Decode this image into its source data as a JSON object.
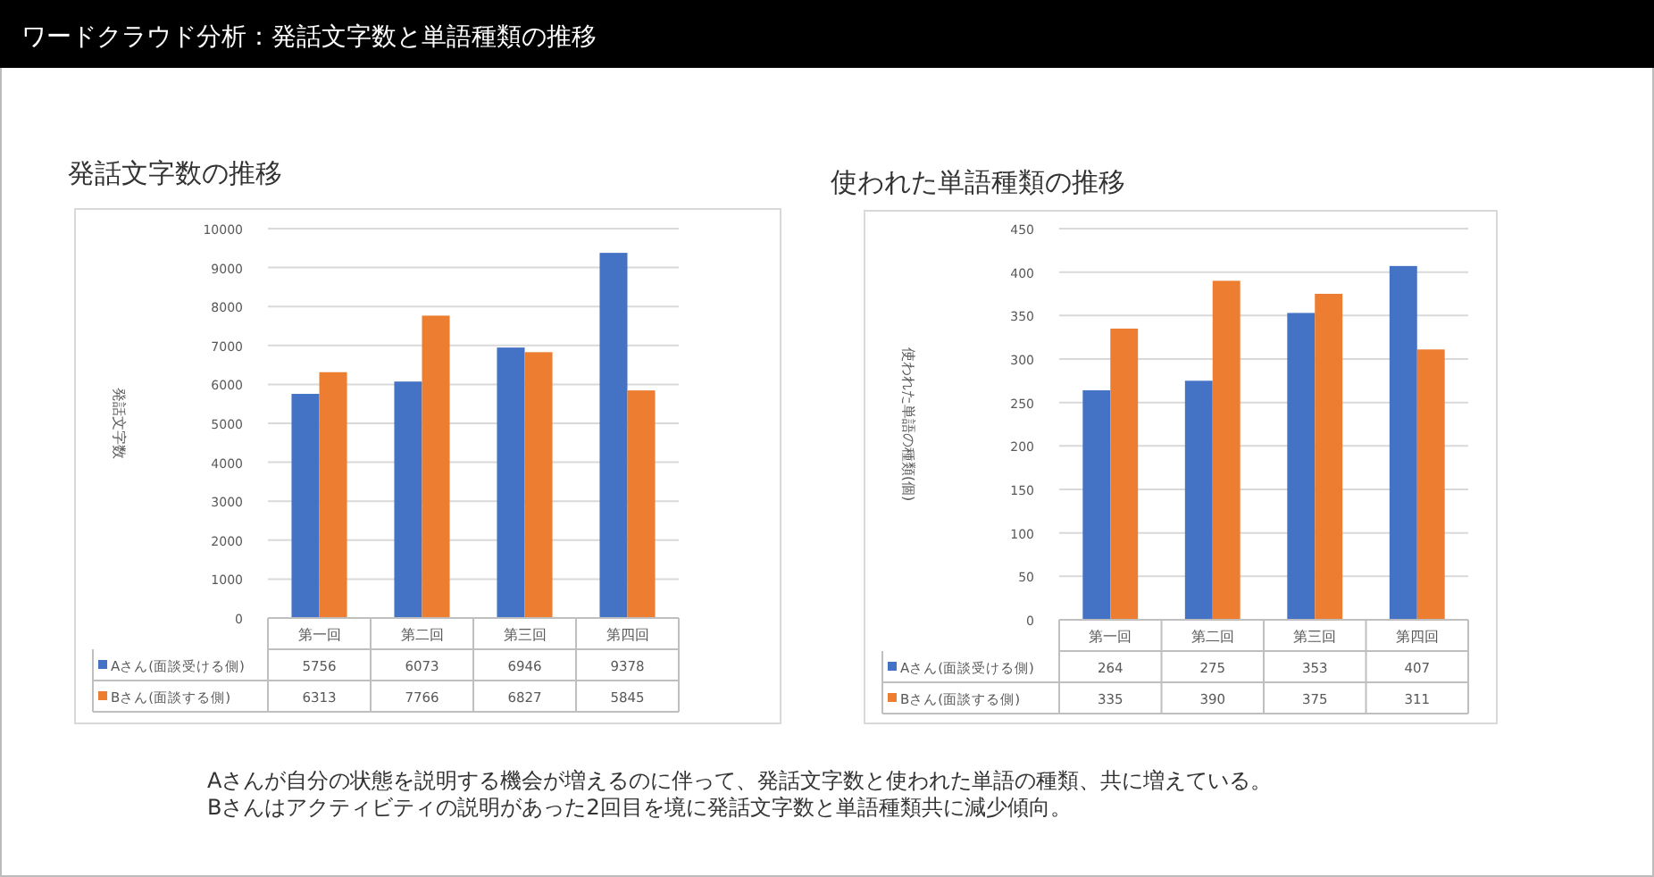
{
  "chart_data": [
    {
      "type": "bar",
      "title": "発話文字数の推移",
      "ylabel": "発話文字数",
      "annotations": [
        "ワードクラウド分析：発話文字数と単語種類の推移"
      ],
      "categories": [
        "第一回",
        "第二回",
        "第三回",
        "第四回"
      ],
      "series": [
        {
          "name": "Aさん(面談受ける側)",
          "color": "#4472c4",
          "values": [
            5756,
            6073,
            6946,
            9378
          ]
        },
        {
          "name": "Bさん(面談する側)",
          "color": "#ed7d31",
          "values": [
            6313,
            7766,
            6827,
            5845
          ]
        }
      ],
      "ylim": [
        0,
        10000
      ],
      "yticks": [
        0,
        1000,
        2000,
        3000,
        4000,
        5000,
        6000,
        7000,
        8000,
        9000,
        10000
      ],
      "grid": "y",
      "legend": "bottom",
      "data_labels": true
    },
    {
      "type": "bar",
      "title": "使われた単語種類の推移",
      "ylabel": "使われた単語の種類(個)",
      "annotations": [
        "Aさんが自分の状態を説明する機会が増えるのに伴って、発話文字数と使われた単語の種類、共に増えている。",
        "Bさんはアクティビティの説明があった2回目を境に発話文字数と単語種類共に減少傾向。"
      ],
      "categories": [
        "第一回",
        "第二回",
        "第三回",
        "第四回"
      ],
      "series": [
        {
          "name": "Aさん(面談受ける側)",
          "color": "#4472c4",
          "values": [
            264,
            275,
            353,
            407
          ]
        },
        {
          "name": "Bさん(面談する側)",
          "color": "#ed7d31",
          "values": [
            335,
            390,
            375,
            311
          ]
        }
      ],
      "ylim": [
        0,
        450
      ],
      "yticks": [
        0,
        50,
        100,
        150,
        200,
        250,
        300,
        350,
        400,
        450
      ],
      "grid": "y",
      "legend": "bottom",
      "data_labels": true
    }
  ]
}
